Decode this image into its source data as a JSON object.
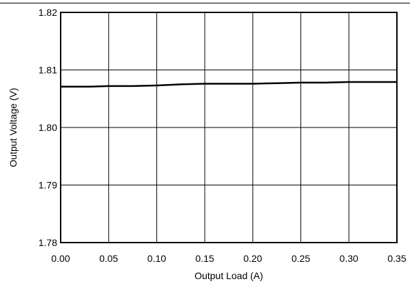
{
  "chart_data": {
    "type": "line",
    "title": "",
    "xlabel": "Output Load (A)",
    "ylabel": "Output Voltage (V)",
    "xlim": [
      0.0,
      0.35
    ],
    "ylim": [
      1.78,
      1.82
    ],
    "grid": true,
    "legend": "none",
    "x_ticks": [
      0.0,
      0.05,
      0.1,
      0.15,
      0.2,
      0.25,
      0.3,
      0.35
    ],
    "x_tick_labels": [
      "0.00",
      "0.05",
      "0.10",
      "0.15",
      "0.20",
      "0.25",
      "0.30",
      "0.35"
    ],
    "y_ticks": [
      1.78,
      1.79,
      1.8,
      1.81,
      1.82
    ],
    "y_tick_labels": [
      "1.78",
      "1.79",
      "1.80",
      "1.81",
      "1.82"
    ],
    "series": [
      {
        "color": "#000000",
        "x": [
          0.0,
          0.01,
          0.03,
          0.05,
          0.075,
          0.1,
          0.125,
          0.15,
          0.175,
          0.2,
          0.225,
          0.25,
          0.275,
          0.3,
          0.325,
          0.35
        ],
        "y": [
          1.8071,
          1.8071,
          1.8071,
          1.8072,
          1.8072,
          1.8073,
          1.8075,
          1.8076,
          1.8076,
          1.8076,
          1.8077,
          1.8078,
          1.8078,
          1.8079,
          1.8079,
          1.8079
        ]
      }
    ]
  }
}
